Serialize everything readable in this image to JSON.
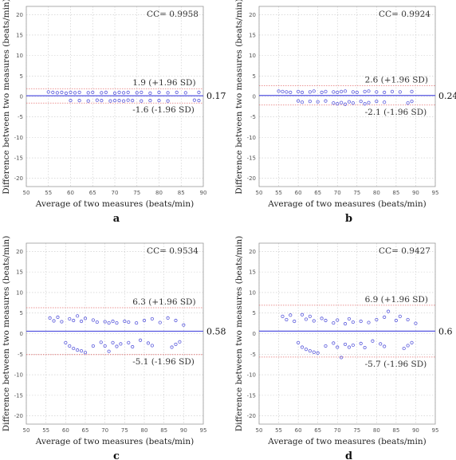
{
  "chart_data": [
    {
      "type": "scatter",
      "panel": "a",
      "xlabel": "Average of two measures (beats/min)",
      "ylabel": "Difference between two measures (beats/min)",
      "xlim": [
        50,
        90
      ],
      "ylim": [
        -22,
        22
      ],
      "xticks": [
        50,
        55,
        60,
        65,
        70,
        75,
        80,
        85,
        90
      ],
      "yticks": [
        -20,
        -15,
        -10,
        -5,
        0,
        5,
        10,
        15,
        20
      ],
      "cc": "CC= 0.9958",
      "mean": 0.17,
      "mean_label": "0.17",
      "upper": 1.9,
      "upper_label": "1.9 (+1.96 SD)",
      "lower": -1.6,
      "lower_label": "-1.6 (-1.96 SD)",
      "grid": true,
      "points": [
        [
          55,
          1.1
        ],
        [
          56,
          1.0
        ],
        [
          57,
          0.9
        ],
        [
          58,
          1.0
        ],
        [
          59,
          0.8
        ],
        [
          60,
          1.0
        ],
        [
          61,
          0.9
        ],
        [
          62,
          1.0
        ],
        [
          64,
          0.9
        ],
        [
          65,
          1.0
        ],
        [
          67,
          0.9
        ],
        [
          68,
          1.0
        ],
        [
          70,
          0.8
        ],
        [
          71,
          1.0
        ],
        [
          72,
          0.9
        ],
        [
          73,
          1.0
        ],
        [
          75,
          0.9
        ],
        [
          76,
          1.0
        ],
        [
          78,
          0.8
        ],
        [
          80,
          1.0
        ],
        [
          82,
          0.9
        ],
        [
          84,
          1.0
        ],
        [
          86,
          0.9
        ],
        [
          89,
          1.0
        ],
        [
          60,
          -1.0
        ],
        [
          62,
          -1.0
        ],
        [
          64,
          -1.1
        ],
        [
          66,
          -0.9
        ],
        [
          67,
          -1.0
        ],
        [
          69,
          -1.1
        ],
        [
          70,
          -1.0
        ],
        [
          71,
          -1.0
        ],
        [
          72,
          -1.1
        ],
        [
          73,
          -0.9
        ],
        [
          74,
          -1.0
        ],
        [
          76,
          -1.1
        ],
        [
          78,
          -1.0
        ],
        [
          80,
          -1.0
        ],
        [
          82,
          -1.1
        ],
        [
          88,
          -0.9
        ],
        [
          89,
          -1.0
        ]
      ]
    },
    {
      "type": "scatter",
      "panel": "b",
      "xlabel": "Average of two measures (beats/min)",
      "ylabel": "Difference between two measures (beats/min)",
      "xlim": [
        50,
        95
      ],
      "ylim": [
        -22,
        22
      ],
      "xticks": [
        50,
        55,
        60,
        65,
        70,
        75,
        80,
        85,
        90,
        95
      ],
      "yticks": [
        -20,
        -15,
        -10,
        -5,
        0,
        5,
        10,
        15,
        20
      ],
      "cc": "CC= 0.9924",
      "mean": 0.24,
      "mean_label": "0.24",
      "upper": 2.6,
      "upper_label": "2.6 (+1.96 SD)",
      "lower": -2.1,
      "lower_label": "-2.1 (-1.96 SD)",
      "grid": true,
      "points": [
        [
          55,
          1.3
        ],
        [
          56,
          1.2
        ],
        [
          57,
          1.1
        ],
        [
          58,
          1.0
        ],
        [
          60,
          1.2
        ],
        [
          61,
          1.0
        ],
        [
          63,
          1.1
        ],
        [
          64,
          1.3
        ],
        [
          66,
          1.0
        ],
        [
          67,
          1.2
        ],
        [
          69,
          1.1
        ],
        [
          70,
          1.0
        ],
        [
          71,
          1.2
        ],
        [
          72,
          1.3
        ],
        [
          74,
          1.1
        ],
        [
          75,
          1.0
        ],
        [
          77,
          1.2
        ],
        [
          78,
          1.3
        ],
        [
          80,
          1.1
        ],
        [
          82,
          1.0
        ],
        [
          84,
          1.2
        ],
        [
          86,
          1.1
        ],
        [
          89,
          1.2
        ],
        [
          60,
          -1.1
        ],
        [
          61,
          -1.4
        ],
        [
          63,
          -1.2
        ],
        [
          65,
          -1.3
        ],
        [
          67,
          -1.1
        ],
        [
          69,
          -1.6
        ],
        [
          70,
          -1.8
        ],
        [
          71,
          -1.5
        ],
        [
          72,
          -1.9
        ],
        [
          73,
          -1.3
        ],
        [
          74,
          -1.6
        ],
        [
          76,
          -1.2
        ],
        [
          77,
          -1.8
        ],
        [
          78,
          -1.5
        ],
        [
          80,
          -1.2
        ],
        [
          82,
          -1.4
        ],
        [
          88,
          -1.6
        ],
        [
          89,
          -1.2
        ]
      ]
    },
    {
      "type": "scatter",
      "panel": "c",
      "xlabel": "Average of two measures (beats/min)",
      "ylabel": "Difference between two measures (beats/min)",
      "xlim": [
        50,
        95
      ],
      "ylim": [
        -22,
        22
      ],
      "xticks": [
        50,
        55,
        60,
        65,
        70,
        75,
        80,
        85,
        90,
        95
      ],
      "yticks": [
        -20,
        -15,
        -10,
        -5,
        0,
        5,
        10,
        15,
        20
      ],
      "cc": "CC= 0.9534",
      "mean": 0.58,
      "mean_label": "0.58",
      "upper": 6.3,
      "upper_label": "6.3 (+1.96 SD)",
      "lower": -5.1,
      "lower_label": "-5.1 (-1.96 SD)",
      "grid": true,
      "points": [
        [
          56,
          3.8
        ],
        [
          57,
          3.1
        ],
        [
          58,
          4.0
        ],
        [
          59,
          2.9
        ],
        [
          61,
          3.6
        ],
        [
          62,
          3.2
        ],
        [
          63,
          4.3
        ],
        [
          64,
          3.0
        ],
        [
          65,
          3.7
        ],
        [
          67,
          3.3
        ],
        [
          68,
          2.8
        ],
        [
          70,
          2.9
        ],
        [
          71,
          2.6
        ],
        [
          72,
          3.0
        ],
        [
          73,
          2.6
        ],
        [
          75,
          3.0
        ],
        [
          76,
          2.8
        ],
        [
          78,
          2.6
        ],
        [
          80,
          3.2
        ],
        [
          82,
          3.6
        ],
        [
          84,
          2.7
        ],
        [
          86,
          3.8
        ],
        [
          88,
          3.2
        ],
        [
          90,
          2.1
        ],
        [
          60,
          -2.2
        ],
        [
          61,
          -3.0
        ],
        [
          62,
          -3.6
        ],
        [
          63,
          -4.0
        ],
        [
          64,
          -4.2
        ],
        [
          65,
          -4.6
        ],
        [
          67,
          -3.0
        ],
        [
          69,
          -2.1
        ],
        [
          70,
          -3.0
        ],
        [
          71,
          -4.3
        ],
        [
          72,
          -2.2
        ],
        [
          73,
          -3.1
        ],
        [
          74,
          -2.5
        ],
        [
          76,
          -2.2
        ],
        [
          77,
          -3.2
        ],
        [
          79,
          -1.6
        ],
        [
          81,
          -2.3
        ],
        [
          82,
          -2.9
        ],
        [
          87,
          -3.3
        ],
        [
          88,
          -2.6
        ],
        [
          89,
          -2.0
        ]
      ]
    },
    {
      "type": "scatter",
      "panel": "d",
      "xlabel": "Average of two measures (beats/min)",
      "ylabel": "Difference between two measures (beats/min)",
      "xlim": [
        50,
        95
      ],
      "ylim": [
        -22,
        22
      ],
      "xticks": [
        50,
        55,
        60,
        65,
        70,
        75,
        80,
        85,
        90,
        95
      ],
      "yticks": [
        -20,
        -15,
        -10,
        -5,
        0,
        5,
        10,
        15,
        20
      ],
      "cc": "CC= 0.9427",
      "mean": 0.6,
      "mean_label": "0.6",
      "upper": 6.9,
      "upper_label": "6.9 (+1.96 SD)",
      "lower": -5.7,
      "lower_label": "-5.7 (-1.96 SD)",
      "grid": true,
      "points": [
        [
          56,
          4.2
        ],
        [
          57,
          3.4
        ],
        [
          58,
          4.5
        ],
        [
          59,
          3.0
        ],
        [
          61,
          4.6
        ],
        [
          62,
          3.5
        ],
        [
          63,
          4.2
        ],
        [
          64,
          3.1
        ],
        [
          66,
          3.7
        ],
        [
          67,
          3.2
        ],
        [
          69,
          2.6
        ],
        [
          70,
          3.3
        ],
        [
          72,
          2.4
        ],
        [
          73,
          3.6
        ],
        [
          74,
          2.8
        ],
        [
          76,
          3.0
        ],
        [
          78,
          2.7
        ],
        [
          80,
          3.4
        ],
        [
          82,
          4.0
        ],
        [
          83,
          5.4
        ],
        [
          85,
          3.2
        ],
        [
          86,
          4.2
        ],
        [
          88,
          3.4
        ],
        [
          90,
          2.5
        ],
        [
          60,
          -2.2
        ],
        [
          61,
          -3.3
        ],
        [
          62,
          -3.8
        ],
        [
          63,
          -4.2
        ],
        [
          64,
          -4.5
        ],
        [
          65,
          -4.7
        ],
        [
          67,
          -3.0
        ],
        [
          69,
          -2.3
        ],
        [
          70,
          -3.3
        ],
        [
          71,
          -5.8
        ],
        [
          72,
          -2.6
        ],
        [
          73,
          -3.3
        ],
        [
          74,
          -2.8
        ],
        [
          76,
          -2.4
        ],
        [
          77,
          -3.4
        ],
        [
          79,
          -1.8
        ],
        [
          81,
          -2.5
        ],
        [
          82,
          -3.1
        ],
        [
          87,
          -3.6
        ],
        [
          88,
          -2.9
        ],
        [
          89,
          -2.2
        ]
      ]
    }
  ],
  "colors": {
    "points": "#5a5adc",
    "mean_line": "#5555e0",
    "limit_line": "#e57373",
    "grid": "#c8c8c8",
    "frame": "#9a9a9a"
  }
}
